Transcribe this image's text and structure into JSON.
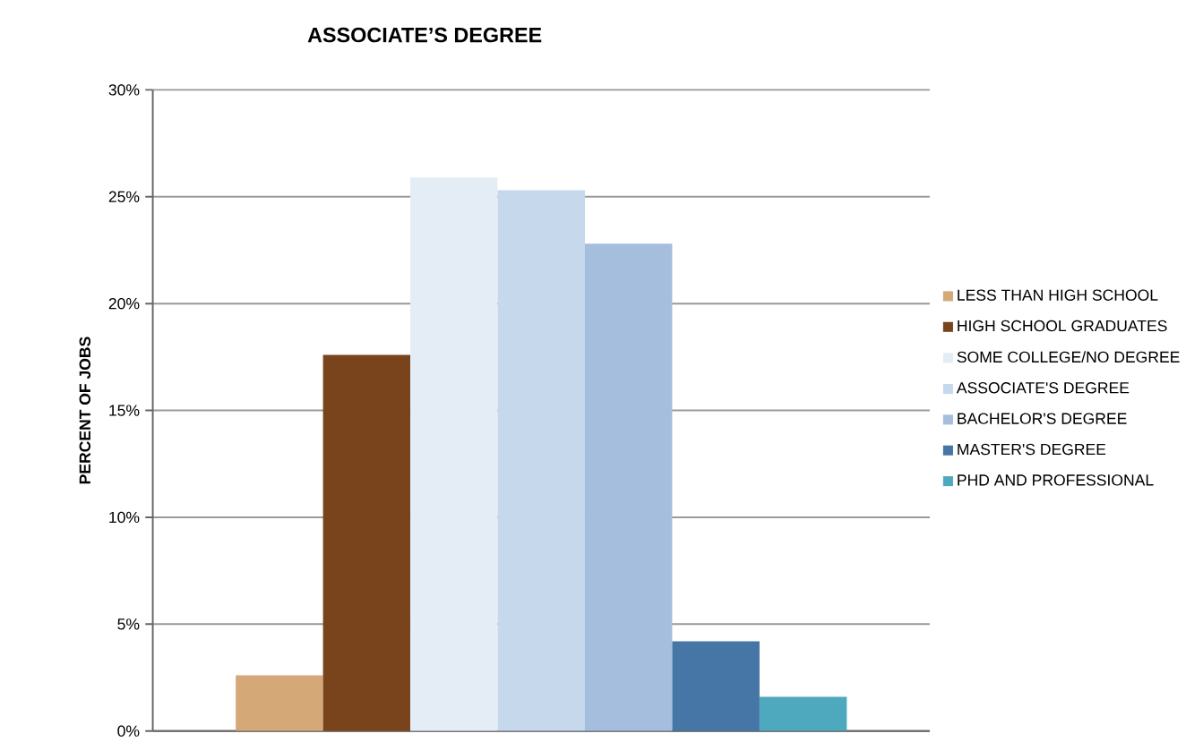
{
  "chart_data": {
    "type": "bar",
    "title": "ASSOCIATE’S DEGREE",
    "ylabel": "PERCENT OF JOBS",
    "categories": [
      null
    ],
    "series": [
      {
        "name": "LESS THAN HIGH SCHOOL",
        "color": "#d4a877",
        "values": [
          2.6
        ]
      },
      {
        "name": "HIGH SCHOOL GRADUATES",
        "color": "#79441c",
        "values": [
          17.6
        ]
      },
      {
        "name": "SOME COLLEGE/NO DEGREE",
        "color": "#e4ecf5",
        "values": [
          25.9
        ]
      },
      {
        "name": "ASSOCIATE'S DEGREE",
        "color": "#c5d8ec",
        "values": [
          25.3
        ]
      },
      {
        "name": "BACHELOR'S DEGREE",
        "color": "#a5bedd",
        "values": [
          22.8
        ]
      },
      {
        "name": "MASTER'S DEGREE",
        "color": "#4676a5",
        "values": [
          4.2
        ]
      },
      {
        "name": "PHD AND PROFESSIONAL",
        "color": "#4ea9bf",
        "values": [
          1.6
        ]
      }
    ],
    "ylim": [
      0,
      30
    ],
    "yticks": [
      {
        "value": 0,
        "label": "0%"
      },
      {
        "value": 5,
        "label": "5%"
      },
      {
        "value": 10,
        "label": "10%"
      },
      {
        "value": 15,
        "label": "15%"
      },
      {
        "value": 20,
        "label": "20%"
      },
      {
        "value": 25,
        "label": "25%"
      },
      {
        "value": 30,
        "label": "30%"
      }
    ],
    "grid": "y",
    "legend": "right",
    "tick_labels": "y"
  }
}
